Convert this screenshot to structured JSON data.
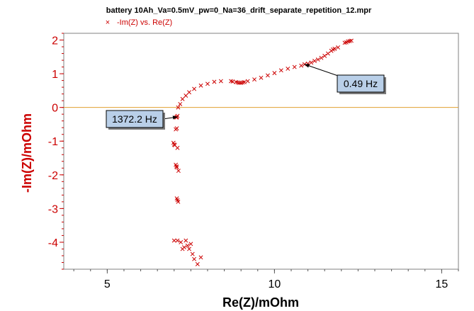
{
  "chart_data": {
    "type": "scatter",
    "title": "battery 10Ah_Va=0.5mV_pw=0_Na=36_drift_separate_repetition_12.mpr",
    "xlabel": "Re(Z)/mOhm",
    "ylabel": "-Im(Z)/mOhm",
    "xlim": [
      3.7,
      15.5
    ],
    "ylim": [
      -4.8,
      2.2
    ],
    "x_ticks": [
      5,
      10,
      15
    ],
    "x_tick_labels": [
      "5",
      "10",
      "15"
    ],
    "y_ticks": [
      2,
      1,
      0,
      -1,
      -2,
      -3,
      -4
    ],
    "y_tick_labels": [
      "2",
      "1",
      "0",
      "-1",
      "-2",
      "-3",
      "-4"
    ],
    "grid": false,
    "legend_position": "top-left",
    "marker": "x",
    "zero_line_color": "#e0a030",
    "series": [
      {
        "name": "-Im(Z) vs. Re(Z)",
        "color": "#cc0000",
        "x": [
          12.3,
          12.25,
          12.2,
          12.15,
          12.1,
          11.9,
          11.8,
          11.75,
          11.7,
          11.6,
          11.5,
          11.4,
          11.3,
          11.2,
          11.1,
          11.0,
          10.9,
          10.8,
          10.6,
          10.4,
          10.2,
          10.0,
          9.8,
          9.6,
          9.4,
          9.2,
          9.1,
          9.05,
          9.0,
          8.95,
          8.9,
          8.85,
          8.75,
          8.7,
          8.4,
          8.2,
          8.0,
          7.8,
          7.6,
          7.45,
          7.35,
          7.25,
          7.18,
          7.12,
          7.1,
          7.08,
          7.07,
          7.08,
          7.05,
          6.98,
          7.0,
          7.02,
          7.05,
          7.07,
          7.08,
          7.08,
          7.1,
          7.12,
          7.1,
          7.13,
          7.1,
          7.0,
          7.2,
          7.25,
          7.35,
          7.3,
          7.4,
          7.45,
          7.5,
          7.55,
          7.6,
          7.8,
          7.7
        ],
        "y": [
          1.98,
          1.97,
          1.96,
          1.93,
          1.92,
          1.78,
          1.74,
          1.72,
          1.68,
          1.6,
          1.53,
          1.47,
          1.42,
          1.38,
          1.33,
          1.3,
          1.28,
          1.24,
          1.2,
          1.15,
          1.1,
          1.02,
          0.95,
          0.88,
          0.83,
          0.78,
          0.75,
          0.74,
          0.73,
          0.73,
          0.74,
          0.75,
          0.77,
          0.78,
          0.78,
          0.76,
          0.7,
          0.65,
          0.55,
          0.45,
          0.35,
          0.25,
          0.1,
          0.0,
          -0.25,
          -0.28,
          -0.3,
          -0.62,
          -0.65,
          -1.05,
          -1.1,
          -1.12,
          -1.7,
          -1.75,
          -1.78,
          -2.7,
          -2.75,
          -2.8,
          -1.2,
          -1.88,
          -3.95,
          -3.95,
          -4.0,
          -4.2,
          -3.95,
          -4.15,
          -4.1,
          -4.2,
          -4.05,
          -4.35,
          -4.5,
          -4.45,
          -4.65
        ]
      }
    ],
    "annotations": [
      {
        "text": "1372.2 Hz",
        "x": 7.1,
        "y": -0.28
      },
      {
        "text": "0.49 Hz",
        "x": 10.9,
        "y": 1.28
      }
    ]
  }
}
